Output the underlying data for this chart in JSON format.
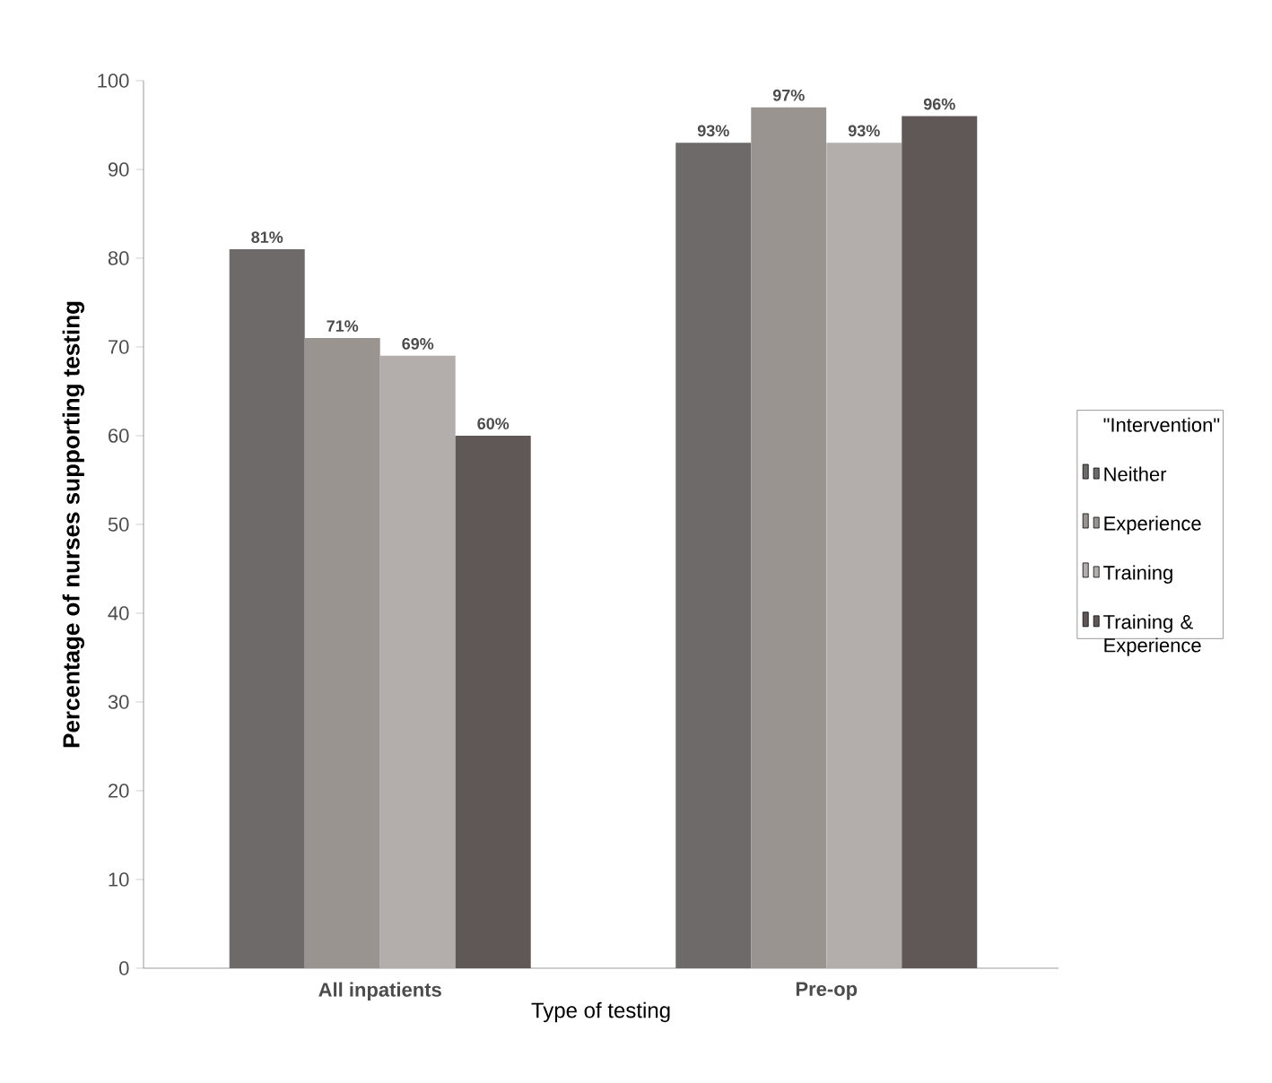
{
  "chart_data": {
    "type": "bar",
    "xlabel": "Type of testing",
    "ylabel": "Percentage of nurses supporting testing",
    "legend_title": "\"Intervention\"",
    "categories": [
      "All inpatients",
      "Pre-op"
    ],
    "series": [
      {
        "name": "Neither",
        "color": "#6e6a69",
        "values": [
          81,
          93
        ],
        "value_labels": [
          "81%",
          "93%"
        ]
      },
      {
        "name": "Experience",
        "color": "#9a9491",
        "values": [
          71,
          97
        ],
        "value_labels": [
          "71%",
          "97%"
        ]
      },
      {
        "name": "Training",
        "color": "#b3aeab",
        "values": [
          69,
          93
        ],
        "value_labels": [
          "69%",
          "93%"
        ]
      },
      {
        "name": "Training & Experience",
        "color": "#5f5857",
        "values": [
          60,
          96
        ],
        "value_labels": [
          "60%",
          "96%"
        ]
      }
    ],
    "ylim": [
      0,
      100
    ],
    "yticks": [
      0,
      10,
      20,
      30,
      40,
      50,
      60,
      70,
      80,
      90,
      100
    ],
    "grid": false,
    "legend": "right"
  }
}
